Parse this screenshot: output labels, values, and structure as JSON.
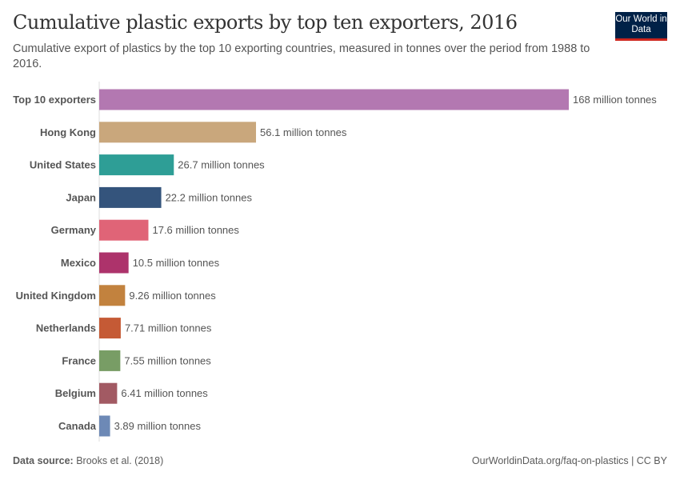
{
  "header": {
    "title": "Cumulative plastic exports by top ten exporters, 2016",
    "subtitle": "Cumulative export of plastics by the top 10 exporting countries, measured in tonnes over the period from 1988 to 2016.",
    "logo_text": "Our World in Data"
  },
  "footer": {
    "source_label": "Data source:",
    "source": "Brooks et al. (2018)",
    "url": "OurWorldinData.org/faq-on-plastics | CC BY"
  },
  "chart_data": {
    "type": "bar",
    "orientation": "horizontal",
    "unit": "million tonnes",
    "grid": false,
    "categories": [
      "Top 10 exporters",
      "Hong Kong",
      "United States",
      "Japan",
      "Germany",
      "Mexico",
      "United Kingdom",
      "Netherlands",
      "France",
      "Belgium",
      "Canada"
    ],
    "values": [
      168,
      56.1,
      26.7,
      22.2,
      17.6,
      10.5,
      9.26,
      7.71,
      7.55,
      6.41,
      3.89
    ],
    "labels": [
      "168 million tonnes",
      "56.1 million tonnes",
      "26.7 million tonnes",
      "22.2 million tonnes",
      "17.6 million tonnes",
      "10.5 million tonnes",
      "9.26 million tonnes",
      "7.71 million tonnes",
      "7.55 million tonnes",
      "6.41 million tonnes",
      "3.89 million tonnes"
    ],
    "colors": [
      "#b378b1",
      "#c9a77c",
      "#2e9e96",
      "#34547c",
      "#e06477",
      "#ad336b",
      "#c2823e",
      "#c55a35",
      "#789d65",
      "#a25a63",
      "#6d89b6"
    ],
    "xlim": [
      0,
      168
    ]
  }
}
